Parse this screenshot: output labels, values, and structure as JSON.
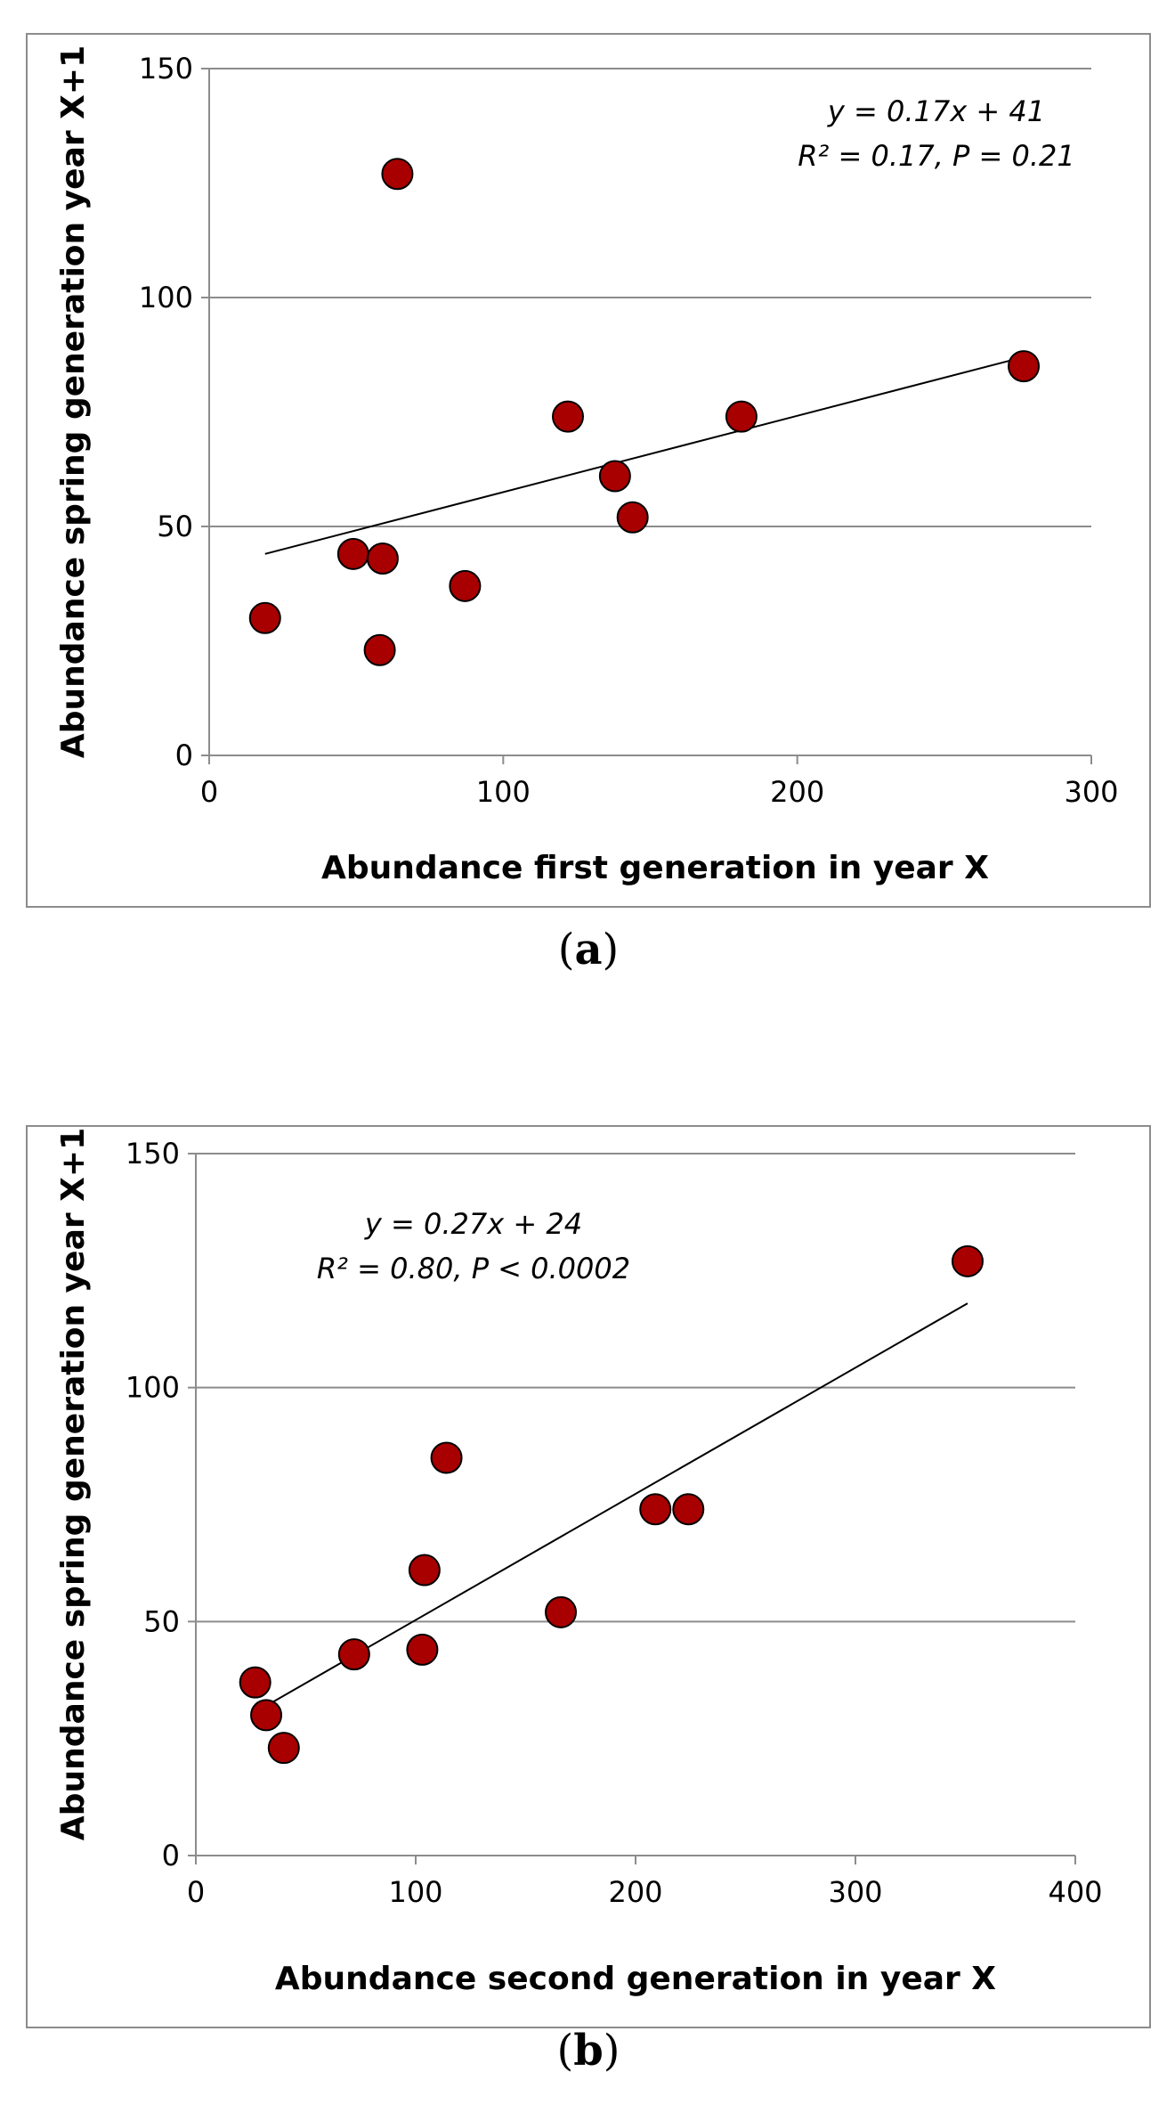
{
  "chart_data": [
    {
      "type": "scatter",
      "panel_label": "a",
      "xlabel": "Abundance first generation in year X",
      "ylabel": "Abundance spring generation year X+1",
      "xlim": [
        0,
        300
      ],
      "ylim": [
        0,
        150
      ],
      "xticks": [
        0,
        100,
        200,
        300
      ],
      "yticks": [
        0,
        50,
        100,
        150
      ],
      "grid": "horizontal",
      "marker_color": "#a80000",
      "points": [
        {
          "x": 19,
          "y": 30
        },
        {
          "x": 49,
          "y": 44
        },
        {
          "x": 59,
          "y": 43
        },
        {
          "x": 58,
          "y": 23
        },
        {
          "x": 64,
          "y": 127
        },
        {
          "x": 87,
          "y": 37
        },
        {
          "x": 122,
          "y": 74
        },
        {
          "x": 138,
          "y": 61
        },
        {
          "x": 144,
          "y": 52
        },
        {
          "x": 181,
          "y": 74
        },
        {
          "x": 277,
          "y": 85
        }
      ],
      "trendline": {
        "x": [
          19,
          277
        ],
        "y": [
          44,
          87
        ]
      },
      "equation": "y = 0.17x + 41",
      "stats": "R² = 0.17, P = 0.21"
    },
    {
      "type": "scatter",
      "panel_label": "b",
      "xlabel": "Abundance second generation in year X",
      "ylabel": "Abundance spring generation year X+1",
      "xlim": [
        0,
        400
      ],
      "ylim": [
        0,
        150
      ],
      "xticks": [
        0,
        100,
        200,
        300,
        400
      ],
      "yticks": [
        0,
        50,
        100,
        150
      ],
      "grid": "horizontal",
      "marker_color": "#a80000",
      "points": [
        {
          "x": 27,
          "y": 37
        },
        {
          "x": 32,
          "y": 30
        },
        {
          "x": 40,
          "y": 23
        },
        {
          "x": 72,
          "y": 43
        },
        {
          "x": 103,
          "y": 44
        },
        {
          "x": 104,
          "y": 61
        },
        {
          "x": 114,
          "y": 85
        },
        {
          "x": 166,
          "y": 52
        },
        {
          "x": 209,
          "y": 74
        },
        {
          "x": 224,
          "y": 74
        },
        {
          "x": 351,
          "y": 127
        }
      ],
      "trendline": {
        "x": [
          32,
          351
        ],
        "y": [
          32,
          118
        ]
      },
      "equation": "y = 0.27x + 24",
      "stats": "R² = 0.80, P < 0.0002"
    }
  ]
}
